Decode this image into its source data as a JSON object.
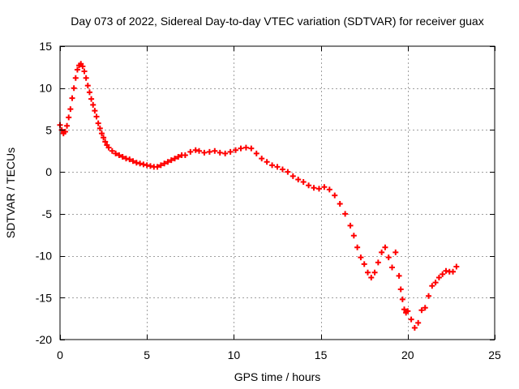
{
  "chart_data": {
    "type": "scatter",
    "title": "Day 073 of 2022, Sidereal Day-to-day VTEC variation (SDTVAR) for receiver guax",
    "xlabel": "GPS time / hours",
    "ylabel": "SDTVAR / TECUs",
    "xlim": [
      0,
      25
    ],
    "ylim": [
      -20,
      15
    ],
    "xticks": [
      0,
      5,
      10,
      15,
      20,
      25
    ],
    "yticks": [
      15,
      10,
      5,
      0,
      -5,
      -10,
      -15,
      -20
    ],
    "grid": true,
    "marker": "+",
    "colors": {
      "series": "#ff0000",
      "grid": "#a0a0a0",
      "axes": "#000000"
    },
    "series": [
      {
        "name": "SDTVAR",
        "points": [
          [
            0.0,
            5.6
          ],
          [
            0.1,
            5.0
          ],
          [
            0.2,
            4.6
          ],
          [
            0.3,
            4.8
          ],
          [
            0.4,
            5.5
          ],
          [
            0.5,
            6.5
          ],
          [
            0.6,
            7.5
          ],
          [
            0.7,
            8.8
          ],
          [
            0.8,
            10.0
          ],
          [
            0.9,
            11.2
          ],
          [
            1.0,
            12.2
          ],
          [
            1.1,
            12.7
          ],
          [
            1.2,
            12.9
          ],
          [
            1.3,
            12.6
          ],
          [
            1.4,
            12.0
          ],
          [
            1.5,
            11.2
          ],
          [
            1.6,
            10.3
          ],
          [
            1.7,
            9.5
          ],
          [
            1.8,
            8.7
          ],
          [
            1.9,
            8.0
          ],
          [
            2.0,
            7.3
          ],
          [
            2.1,
            6.6
          ],
          [
            2.2,
            5.8
          ],
          [
            2.3,
            5.2
          ],
          [
            2.4,
            4.6
          ],
          [
            2.5,
            4.1
          ],
          [
            2.6,
            3.6
          ],
          [
            2.7,
            3.2
          ],
          [
            2.8,
            2.9
          ],
          [
            3.0,
            2.5
          ],
          [
            3.2,
            2.2
          ],
          [
            3.4,
            2.0
          ],
          [
            3.6,
            1.8
          ],
          [
            3.8,
            1.6
          ],
          [
            4.0,
            1.5
          ],
          [
            4.2,
            1.3
          ],
          [
            4.4,
            1.1
          ],
          [
            4.6,
            1.0
          ],
          [
            4.8,
            0.9
          ],
          [
            5.0,
            0.8
          ],
          [
            5.2,
            0.7
          ],
          [
            5.4,
            0.6
          ],
          [
            5.6,
            0.6
          ],
          [
            5.8,
            0.8
          ],
          [
            6.0,
            1.0
          ],
          [
            6.2,
            1.2
          ],
          [
            6.4,
            1.4
          ],
          [
            6.6,
            1.6
          ],
          [
            6.8,
            1.8
          ],
          [
            7.0,
            2.0
          ],
          [
            7.2,
            2.0
          ],
          [
            7.5,
            2.4
          ],
          [
            7.8,
            2.6
          ],
          [
            8.0,
            2.5
          ],
          [
            8.3,
            2.3
          ],
          [
            8.6,
            2.4
          ],
          [
            8.9,
            2.5
          ],
          [
            9.2,
            2.3
          ],
          [
            9.5,
            2.2
          ],
          [
            9.8,
            2.4
          ],
          [
            10.1,
            2.6
          ],
          [
            10.4,
            2.8
          ],
          [
            10.7,
            2.9
          ],
          [
            11.0,
            2.8
          ],
          [
            11.3,
            2.2
          ],
          [
            11.6,
            1.6
          ],
          [
            11.9,
            1.2
          ],
          [
            12.2,
            0.8
          ],
          [
            12.5,
            0.6
          ],
          [
            12.8,
            0.3
          ],
          [
            13.1,
            0.0
          ],
          [
            13.4,
            -0.5
          ],
          [
            13.7,
            -0.9
          ],
          [
            14.0,
            -1.2
          ],
          [
            14.3,
            -1.6
          ],
          [
            14.6,
            -1.9
          ],
          [
            14.9,
            -2.0
          ],
          [
            15.2,
            -1.8
          ],
          [
            15.5,
            -2.1
          ],
          [
            15.8,
            -2.8
          ],
          [
            16.1,
            -3.8
          ],
          [
            16.4,
            -5.0
          ],
          [
            16.7,
            -6.4
          ],
          [
            16.9,
            -7.6
          ],
          [
            17.1,
            -9.0
          ],
          [
            17.3,
            -10.2
          ],
          [
            17.5,
            -11.0
          ],
          [
            17.7,
            -12.0
          ],
          [
            17.9,
            -12.6
          ],
          [
            18.1,
            -12.0
          ],
          [
            18.3,
            -10.8
          ],
          [
            18.5,
            -9.6
          ],
          [
            18.7,
            -9.0
          ],
          [
            18.9,
            -10.2
          ],
          [
            19.1,
            -11.4
          ],
          [
            19.3,
            -9.6
          ],
          [
            19.5,
            -12.4
          ],
          [
            19.6,
            -14.0
          ],
          [
            19.7,
            -15.2
          ],
          [
            19.8,
            -16.4
          ],
          [
            19.9,
            -16.8
          ],
          [
            20.0,
            -16.6
          ],
          [
            20.2,
            -17.6
          ],
          [
            20.4,
            -18.6
          ],
          [
            20.6,
            -18.0
          ],
          [
            20.8,
            -16.5
          ],
          [
            21.0,
            -16.2
          ],
          [
            21.2,
            -14.8
          ],
          [
            21.4,
            -13.6
          ],
          [
            21.6,
            -13.2
          ],
          [
            21.8,
            -12.6
          ],
          [
            22.0,
            -12.2
          ],
          [
            22.2,
            -11.8
          ],
          [
            22.4,
            -11.9
          ],
          [
            22.6,
            -11.9
          ],
          [
            22.8,
            -11.3
          ]
        ]
      }
    ]
  }
}
